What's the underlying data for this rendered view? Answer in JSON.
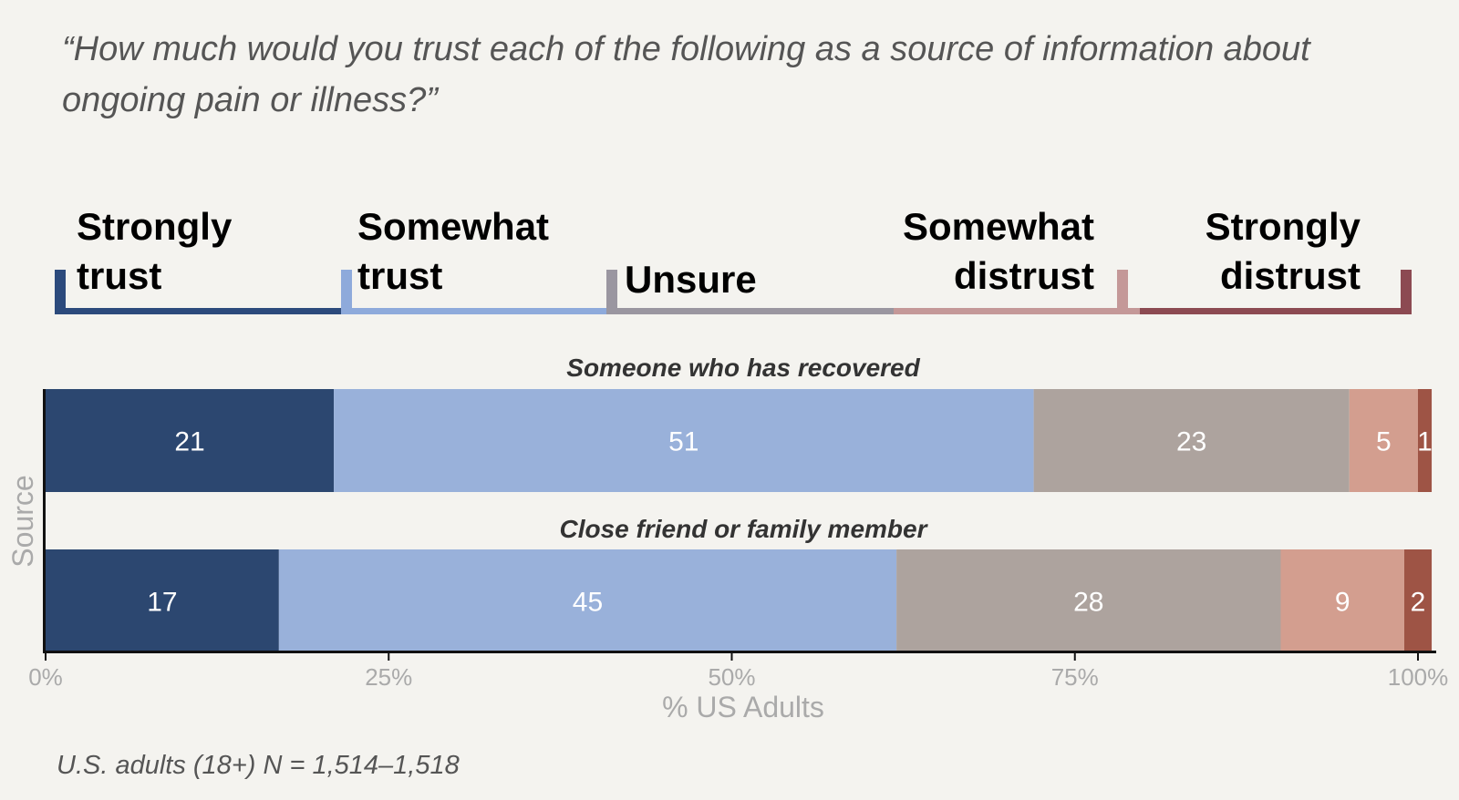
{
  "question": "“How much would you trust each of the following as a source of information about ongoing pain or illness?”",
  "legend": [
    {
      "line1": "Strongly",
      "line2": "trust",
      "color": "#2c4a7c",
      "bracket_color": "#2c4a7c"
    },
    {
      "line1": "Somewhat",
      "line2": "trust",
      "color": "#8eaadb",
      "bracket_color": "#8eaadb"
    },
    {
      "line1": "Unsure",
      "line2": "",
      "color": "#9a96a0",
      "bracket_color": "#9a96a0"
    },
    {
      "line1": "Somewhat",
      "line2": "distrust",
      "color": "#c49898",
      "bracket_color": "#c49898"
    },
    {
      "line1": "Strongly",
      "line2": "distrust",
      "color": "#8c4a52",
      "bracket_color": "#8c4a52"
    }
  ],
  "chart_data": {
    "type": "bar",
    "orientation": "horizontal-stacked-100",
    "categories": [
      "Someone who has recovered",
      "Close friend or family member"
    ],
    "series": [
      {
        "name": "Strongly trust",
        "color": "#2c4770",
        "values": [
          21,
          17
        ]
      },
      {
        "name": "Somewhat trust",
        "color": "#99b1da",
        "values": [
          51,
          45
        ]
      },
      {
        "name": "Unsure",
        "color": "#ada39e",
        "values": [
          23,
          28
        ]
      },
      {
        "name": "Somewhat distrust",
        "color": "#d39e8f",
        "values": [
          5,
          9
        ]
      },
      {
        "name": "Strongly distrust",
        "color": "#9e5445",
        "values": [
          1,
          2
        ]
      }
    ],
    "xlim": [
      0,
      100
    ],
    "xticks": [
      "0%",
      "25%",
      "50%",
      "75%",
      "100%"
    ],
    "xlabel": "% US Adults",
    "ylabel": "Source"
  },
  "footnote": "U.S. adults (18+) N = 1,514–1,518"
}
